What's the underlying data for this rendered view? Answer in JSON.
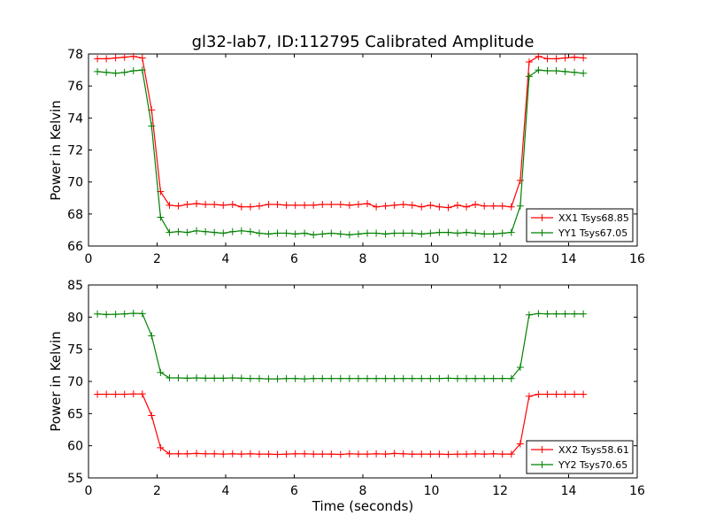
{
  "chart_data": [
    {
      "type": "line",
      "title": "gl32-lab7, ID:112795 Calibrated Amplitude",
      "xlabel": "",
      "ylabel": "Power in Kelvin",
      "xlim": [
        0,
        16
      ],
      "ylim": [
        66,
        78
      ],
      "xticks": [
        0,
        2,
        4,
        6,
        8,
        10,
        12,
        14,
        16
      ],
      "yticks": [
        66,
        68,
        70,
        72,
        74,
        76,
        78
      ],
      "grid": false,
      "legend_position": "lower-right",
      "x": [
        0.26,
        0.52,
        0.79,
        1.05,
        1.31,
        1.57,
        1.84,
        2.1,
        2.36,
        2.62,
        2.88,
        3.15,
        3.41,
        3.67,
        3.93,
        4.2,
        4.46,
        4.72,
        4.98,
        5.25,
        5.51,
        5.77,
        6.03,
        6.3,
        6.56,
        6.82,
        7.08,
        7.35,
        7.61,
        7.87,
        8.13,
        8.39,
        8.66,
        8.92,
        9.18,
        9.44,
        9.71,
        9.97,
        10.23,
        10.49,
        10.76,
        11.02,
        11.28,
        11.54,
        11.81,
        12.07,
        12.33,
        12.59,
        12.85,
        13.12,
        13.38,
        13.64,
        13.9,
        14.17,
        14.43
      ],
      "series": [
        {
          "name": "XX1 Tsys68.85",
          "color": "#ff0000",
          "values": [
            77.7,
            77.7,
            77.75,
            77.8,
            77.85,
            77.75,
            74.5,
            69.4,
            68.55,
            68.5,
            68.6,
            68.65,
            68.6,
            68.6,
            68.55,
            68.6,
            68.45,
            68.45,
            68.5,
            68.6,
            68.6,
            68.55,
            68.55,
            68.55,
            68.55,
            68.6,
            68.6,
            68.6,
            68.55,
            68.6,
            68.65,
            68.45,
            68.5,
            68.55,
            68.6,
            68.55,
            68.45,
            68.55,
            68.45,
            68.4,
            68.55,
            68.45,
            68.6,
            68.5,
            68.5,
            68.5,
            68.45,
            70.1,
            77.5,
            77.85,
            77.7,
            77.7,
            77.75,
            77.8,
            77.75
          ]
        },
        {
          "name": "YY1 Tsys67.05",
          "color": "#008000",
          "values": [
            76.9,
            76.85,
            76.8,
            76.85,
            76.95,
            77.0,
            73.5,
            67.8,
            66.85,
            66.9,
            66.85,
            66.95,
            66.9,
            66.85,
            66.8,
            66.9,
            66.95,
            66.9,
            66.8,
            66.75,
            66.8,
            66.8,
            66.75,
            66.8,
            66.7,
            66.75,
            66.8,
            66.75,
            66.7,
            66.75,
            66.8,
            66.8,
            66.75,
            66.8,
            66.8,
            66.8,
            66.75,
            66.8,
            66.85,
            66.85,
            66.8,
            66.85,
            66.8,
            66.75,
            66.75,
            66.8,
            66.85,
            68.5,
            76.6,
            77.0,
            76.95,
            76.95,
            76.9,
            76.85,
            76.8
          ]
        }
      ]
    },
    {
      "type": "line",
      "title": "",
      "xlabel": "Time (seconds)",
      "ylabel": "Power in Kelvin",
      "xlim": [
        0,
        16
      ],
      "ylim": [
        55,
        85
      ],
      "xticks": [
        0,
        2,
        4,
        6,
        8,
        10,
        12,
        14,
        16
      ],
      "yticks": [
        55,
        60,
        65,
        70,
        75,
        80,
        85
      ],
      "grid": false,
      "legend_position": "lower-right",
      "x": [
        0.26,
        0.52,
        0.79,
        1.05,
        1.31,
        1.57,
        1.84,
        2.1,
        2.36,
        2.62,
        2.88,
        3.15,
        3.41,
        3.67,
        3.93,
        4.2,
        4.46,
        4.72,
        4.98,
        5.25,
        5.51,
        5.77,
        6.03,
        6.3,
        6.56,
        6.82,
        7.08,
        7.35,
        7.61,
        7.87,
        8.13,
        8.39,
        8.66,
        8.92,
        9.18,
        9.44,
        9.71,
        9.97,
        10.23,
        10.49,
        10.76,
        11.02,
        11.28,
        11.54,
        11.81,
        12.07,
        12.33,
        12.59,
        12.85,
        13.12,
        13.38,
        13.64,
        13.9,
        14.17,
        14.43
      ],
      "series": [
        {
          "name": "XX2 Tsys58.61",
          "color": "#ff0000",
          "values": [
            68.0,
            68.0,
            68.0,
            68.0,
            68.05,
            68.05,
            64.7,
            59.7,
            58.75,
            58.75,
            58.75,
            58.8,
            58.75,
            58.75,
            58.7,
            58.75,
            58.7,
            58.75,
            58.7,
            58.7,
            58.65,
            58.7,
            58.75,
            58.75,
            58.7,
            58.7,
            58.7,
            58.65,
            58.75,
            58.7,
            58.7,
            58.75,
            58.7,
            58.8,
            58.75,
            58.7,
            58.7,
            58.7,
            58.7,
            58.65,
            58.7,
            58.7,
            58.75,
            58.7,
            58.75,
            58.7,
            58.7,
            60.3,
            67.7,
            68.0,
            68.0,
            68.0,
            68.0,
            68.0,
            68.0
          ]
        },
        {
          "name": "YY2 Tsys70.65",
          "color": "#008000",
          "values": [
            80.5,
            80.4,
            80.45,
            80.5,
            80.6,
            80.55,
            77.1,
            71.4,
            70.55,
            70.55,
            70.5,
            70.55,
            70.5,
            70.5,
            70.5,
            70.55,
            70.5,
            70.45,
            70.45,
            70.4,
            70.4,
            70.45,
            70.45,
            70.4,
            70.45,
            70.45,
            70.45,
            70.45,
            70.45,
            70.45,
            70.45,
            70.45,
            70.45,
            70.45,
            70.45,
            70.45,
            70.45,
            70.45,
            70.45,
            70.5,
            70.45,
            70.45,
            70.45,
            70.45,
            70.45,
            70.45,
            70.45,
            72.2,
            80.35,
            80.55,
            80.5,
            80.5,
            80.5,
            80.5,
            80.5
          ]
        }
      ]
    }
  ]
}
